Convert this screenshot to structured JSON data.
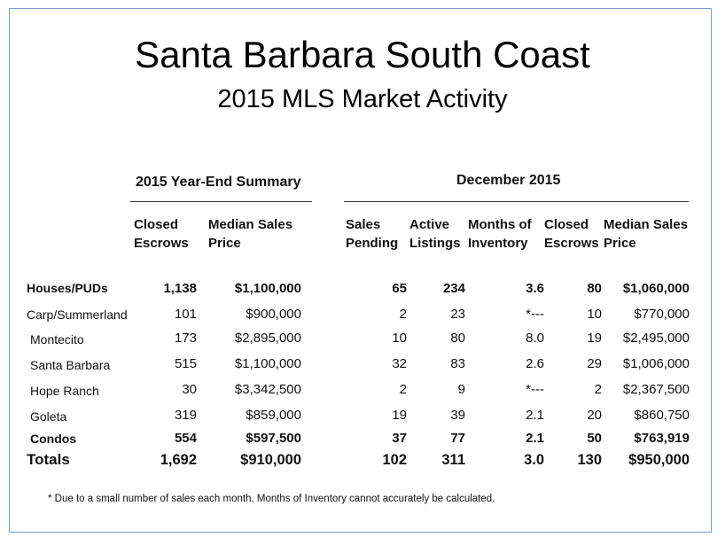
{
  "title": "Santa Barbara South Coast",
  "subtitle": "2015 MLS Market Activity",
  "sections": {
    "year_end": "2015 Year-End Summary",
    "december": "December 2015"
  },
  "headers": {
    "closed_escrows_1": "Closed",
    "closed_escrows_2": "Escrows",
    "median_1": "Median Sales",
    "median_2": "Price",
    "sales_pending_1": "Sales",
    "sales_pending_2": "Pending",
    "active_1": "Active",
    "active_2": "Listings",
    "months_1": "Months of",
    "months_2": "Inventory",
    "dec_closed_1": "Closed",
    "dec_closed_2": "Escrows",
    "dec_median_1": "Median Sales",
    "dec_median_2": "Price"
  },
  "rows": [
    {
      "label": "Houses/PUDs",
      "closed": "1,138",
      "median": "$1,100,000",
      "pending": "65",
      "active": "234",
      "months": "3.6",
      "dec_closed": "80",
      "dec_median": "$1,060,000"
    },
    {
      "label": "Carp/Summerland",
      "closed": "101",
      "median": "$900,000",
      "pending": "2",
      "active": "23",
      "months": "*---",
      "dec_closed": "10",
      "dec_median": "$770,000"
    },
    {
      "label": "Montecito",
      "closed": "173",
      "median": "$2,895,000",
      "pending": "10",
      "active": "80",
      "months": "8.0",
      "dec_closed": "19",
      "dec_median": "$2,495,000"
    },
    {
      "label": "Santa Barbara",
      "closed": "515",
      "median": "$1,100,000",
      "pending": "32",
      "active": "83",
      "months": "2.6",
      "dec_closed": "29",
      "dec_median": "$1,006,000"
    },
    {
      "label": "Hope Ranch",
      "closed": "30",
      "median": "$3,342,500",
      "pending": "2",
      "active": "9",
      "months": "*---",
      "dec_closed": "2",
      "dec_median": "$2,367,500"
    },
    {
      "label": "Goleta",
      "closed": "319",
      "median": "$859,000",
      "pending": "19",
      "active": "39",
      "months": "2.1",
      "dec_closed": "20",
      "dec_median": "$860,750"
    },
    {
      "label": "Condos",
      "closed": "554",
      "median": "$597,500",
      "pending": "37",
      "active": "77",
      "months": "2.1",
      "dec_closed": "50",
      "dec_median": "$763,919"
    },
    {
      "label": "Totals",
      "closed": "1,692",
      "median": "$910,000",
      "pending": "102",
      "active": "311",
      "months": "3.0",
      "dec_closed": "130",
      "dec_median": "$950,000"
    }
  ],
  "footnote": "* Due to a small number of sales each month, Months of Inventory cannot accurately be calculated."
}
